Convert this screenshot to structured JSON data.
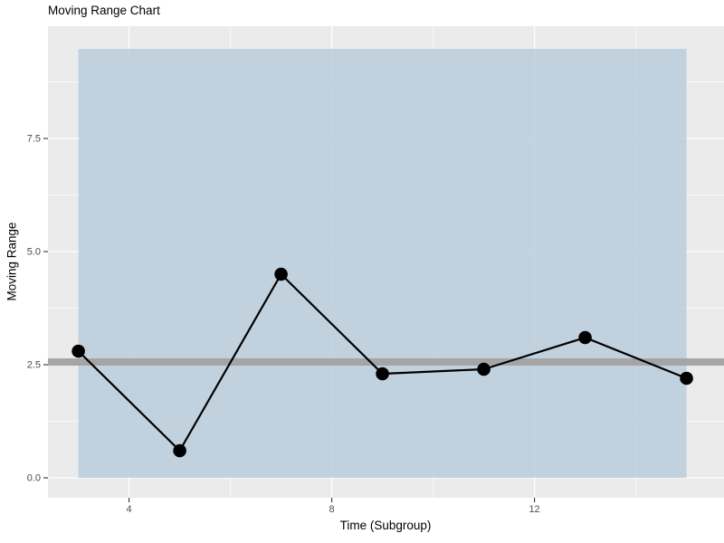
{
  "chart_data": {
    "type": "line",
    "title": "Moving Range Chart",
    "xlabel": "Time (Subgroup)",
    "ylabel": "Moving Range",
    "x": [
      3,
      5,
      7,
      9,
      11,
      13,
      15
    ],
    "values": [
      2.8,
      0.6,
      4.5,
      2.3,
      2.4,
      3.1,
      2.2
    ],
    "center_line": 2.56,
    "control_band": {
      "lower": 0,
      "upper": 9.48,
      "x_start": 3,
      "x_end": 15
    },
    "x_major_ticks": [
      "4",
      "8",
      "12"
    ],
    "x_major_values": [
      4,
      8,
      12
    ],
    "x_minor_values": [
      6,
      10,
      14
    ],
    "y_major_ticks": [
      "0.0",
      "2.5",
      "5.0",
      "7.5"
    ],
    "y_major_values": [
      0,
      2.5,
      5,
      7.5
    ],
    "y_minor_values": [
      1.25,
      3.75,
      6.25,
      8.75
    ],
    "xlim": [
      2.4,
      15.74
    ],
    "ylim": [
      -0.44,
      9.98
    ],
    "grid": true,
    "legend": "none",
    "colors": {
      "panel_background": "#ebebeb",
      "gridline_major": "#ffffff",
      "gridline_minor": "#ffffff",
      "band_fill": "#b8cbdb",
      "band_opacity": 0.82,
      "center_line": "#a5a5a5",
      "series": "#000000",
      "tick_mark": "#333333",
      "tick_label": "#4d4d4d",
      "axis_title": "#000000"
    }
  }
}
